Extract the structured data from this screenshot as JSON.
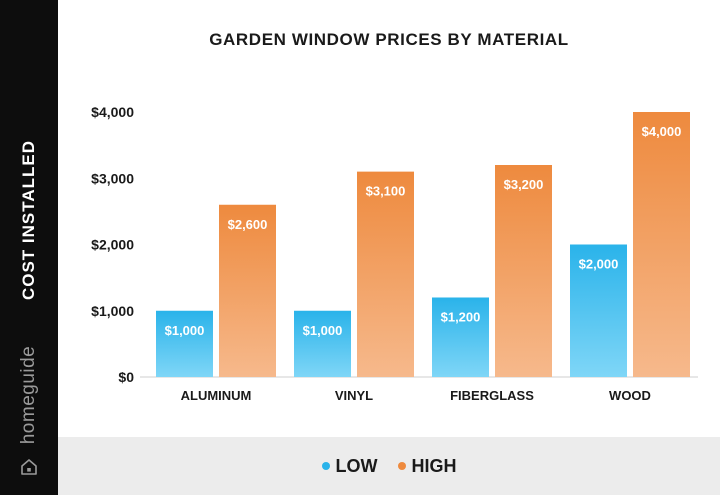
{
  "chart_data": {
    "type": "bar",
    "title": "GARDEN WINDOW PRICES BY MATERIAL",
    "ylabel": "COST INSTALLED",
    "xlabel": "",
    "categories": [
      "ALUMINUM",
      "VINYL",
      "FIBERGLASS",
      "WOOD"
    ],
    "series": [
      {
        "name": "LOW",
        "values": [
          1000,
          1000,
          1200,
          2000
        ],
        "labels": [
          "$1,000",
          "$1,000",
          "$1,200",
          "$2,000"
        ],
        "color": "#2ab3ea"
      },
      {
        "name": "HIGH",
        "values": [
          2600,
          3100,
          3200,
          4000
        ],
        "labels": [
          "$2,600",
          "$3,100",
          "$3,200",
          "$4,000"
        ],
        "color": "#ee8a3e"
      }
    ],
    "y_ticks": [
      0,
      1000,
      2000,
      3000,
      4000
    ],
    "y_tick_labels": [
      "$0",
      "$1,000",
      "$2,000",
      "$3,000",
      "$4,000"
    ],
    "ylim": [
      0,
      4000
    ],
    "grid": false,
    "legend_position": "bottom"
  },
  "brand": {
    "name": "homeguide"
  }
}
